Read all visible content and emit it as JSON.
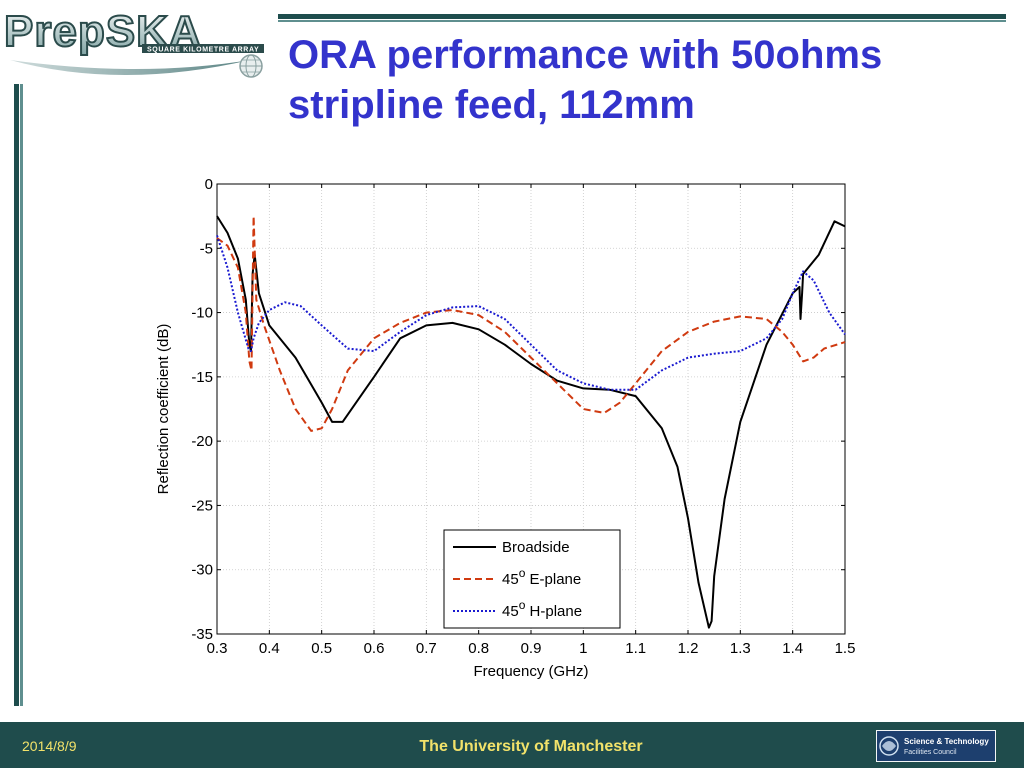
{
  "header": {
    "title_line1": "ORA performance with 50ohms",
    "title_line2": "stripline feed, 112mm"
  },
  "logo": {
    "name": "PrepSKA",
    "tagline": "SQUARE KILOMETRE ARRAY"
  },
  "footer": {
    "date": "2014/8/9",
    "center_text": "The University of Manchester",
    "partner_line1": "Science & Technology",
    "partner_line2": "Facilities Council"
  },
  "colors": {
    "title": "#3333cc",
    "rule": "#1e4d4d",
    "footer_bg": "#1f4c4c",
    "footer_text": "#f2e26a",
    "broadside": "#000000",
    "e_plane": "#d03a10",
    "h_plane": "#1a1ad0"
  },
  "chart_data": {
    "type": "line",
    "title": "",
    "xlabel": "Frequency (GHz)",
    "ylabel": "Reflection coefficient (dB)",
    "xlim": [
      0.3,
      1.5
    ],
    "ylim": [
      -35,
      0
    ],
    "xticks": [
      0.3,
      0.4,
      0.5,
      0.6,
      0.7,
      0.8,
      0.9,
      1,
      1.1,
      1.2,
      1.3,
      1.4,
      1.5
    ],
    "xtick_labels": [
      "0.3",
      "0.4",
      "0.5",
      "0.6",
      "0.7",
      "0.8",
      "0.9",
      "1",
      "1.1",
      "1.2",
      "1.3",
      "1.4",
      "1.5"
    ],
    "yticks": [
      0,
      -5,
      -10,
      -15,
      -20,
      -25,
      -30,
      -35
    ],
    "ytick_labels": [
      "0",
      "-5",
      "-10",
      "-15",
      "-20",
      "-25",
      "-30",
      "-35"
    ],
    "grid": true,
    "legend_position": "bottom-center",
    "series": [
      {
        "name": "Broadside",
        "superscript": "",
        "name_suffix": "",
        "style": "solid",
        "x": [
          0.3,
          0.32,
          0.34,
          0.355,
          0.362,
          0.365,
          0.368,
          0.372,
          0.38,
          0.4,
          0.45,
          0.5,
          0.52,
          0.54,
          0.6,
          0.65,
          0.7,
          0.75,
          0.8,
          0.85,
          0.9,
          0.95,
          1.0,
          1.05,
          1.1,
          1.15,
          1.18,
          1.2,
          1.22,
          1.24,
          1.245,
          1.25,
          1.27,
          1.3,
          1.35,
          1.4,
          1.413,
          1.415,
          1.418,
          1.42,
          1.45,
          1.48,
          1.5
        ],
        "y": [
          -2.5,
          -3.8,
          -5.8,
          -9.0,
          -12.5,
          -13.0,
          -7.0,
          -5.5,
          -8.5,
          -11.0,
          -13.5,
          -17.0,
          -18.5,
          -18.5,
          -15.0,
          -12.0,
          -11.0,
          -10.8,
          -11.3,
          -12.5,
          -14.0,
          -15.3,
          -15.9,
          -16.0,
          -16.5,
          -19.0,
          -22.0,
          -26.0,
          -31.0,
          -34.5,
          -34.0,
          -30.5,
          -24.5,
          -18.5,
          -12.5,
          -8.5,
          -8.0,
          -10.5,
          -8.5,
          -7.0,
          -5.5,
          -2.9,
          -3.3
        ]
      },
      {
        "name": "",
        "superscript": "o",
        "name_prefix": "45",
        "name_suffix": " E-plane",
        "style": "dashed",
        "x": [
          0.3,
          0.32,
          0.34,
          0.355,
          0.362,
          0.366,
          0.37,
          0.375,
          0.39,
          0.42,
          0.45,
          0.48,
          0.5,
          0.52,
          0.55,
          0.6,
          0.65,
          0.7,
          0.75,
          0.8,
          0.85,
          0.9,
          0.95,
          1.0,
          1.04,
          1.07,
          1.1,
          1.15,
          1.2,
          1.25,
          1.3,
          1.35,
          1.38,
          1.4,
          1.42,
          1.44,
          1.46,
          1.5
        ],
        "y": [
          -4.2,
          -4.8,
          -6.5,
          -10.0,
          -13.8,
          -14.5,
          -2.5,
          -9.0,
          -11.0,
          -14.5,
          -17.5,
          -19.2,
          -19.0,
          -17.5,
          -14.5,
          -12.0,
          -10.8,
          -10.0,
          -9.8,
          -10.2,
          -11.5,
          -13.5,
          -15.5,
          -17.5,
          -17.8,
          -17.0,
          -15.5,
          -13.0,
          -11.5,
          -10.7,
          -10.3,
          -10.5,
          -11.5,
          -12.5,
          -13.8,
          -13.5,
          -12.8,
          -12.3
        ]
      },
      {
        "name": "",
        "superscript": "o",
        "name_prefix": "45",
        "name_suffix": " H-plane",
        "style": "dotted",
        "x": [
          0.3,
          0.32,
          0.34,
          0.36,
          0.365,
          0.37,
          0.38,
          0.4,
          0.43,
          0.46,
          0.5,
          0.55,
          0.6,
          0.65,
          0.7,
          0.75,
          0.8,
          0.85,
          0.9,
          0.95,
          1.0,
          1.05,
          1.1,
          1.15,
          1.2,
          1.25,
          1.3,
          1.35,
          1.38,
          1.4,
          1.42,
          1.44,
          1.47,
          1.5
        ],
        "y": [
          -4.0,
          -6.5,
          -10.0,
          -12.8,
          -13.0,
          -12.0,
          -10.8,
          -9.8,
          -9.2,
          -9.5,
          -11.0,
          -12.8,
          -13.0,
          -11.5,
          -10.2,
          -9.6,
          -9.5,
          -10.5,
          -12.5,
          -14.5,
          -15.5,
          -16.0,
          -16.0,
          -14.5,
          -13.5,
          -13.2,
          -13.0,
          -12.0,
          -10.5,
          -8.5,
          -6.8,
          -7.5,
          -10.0,
          -11.7
        ]
      }
    ]
  }
}
